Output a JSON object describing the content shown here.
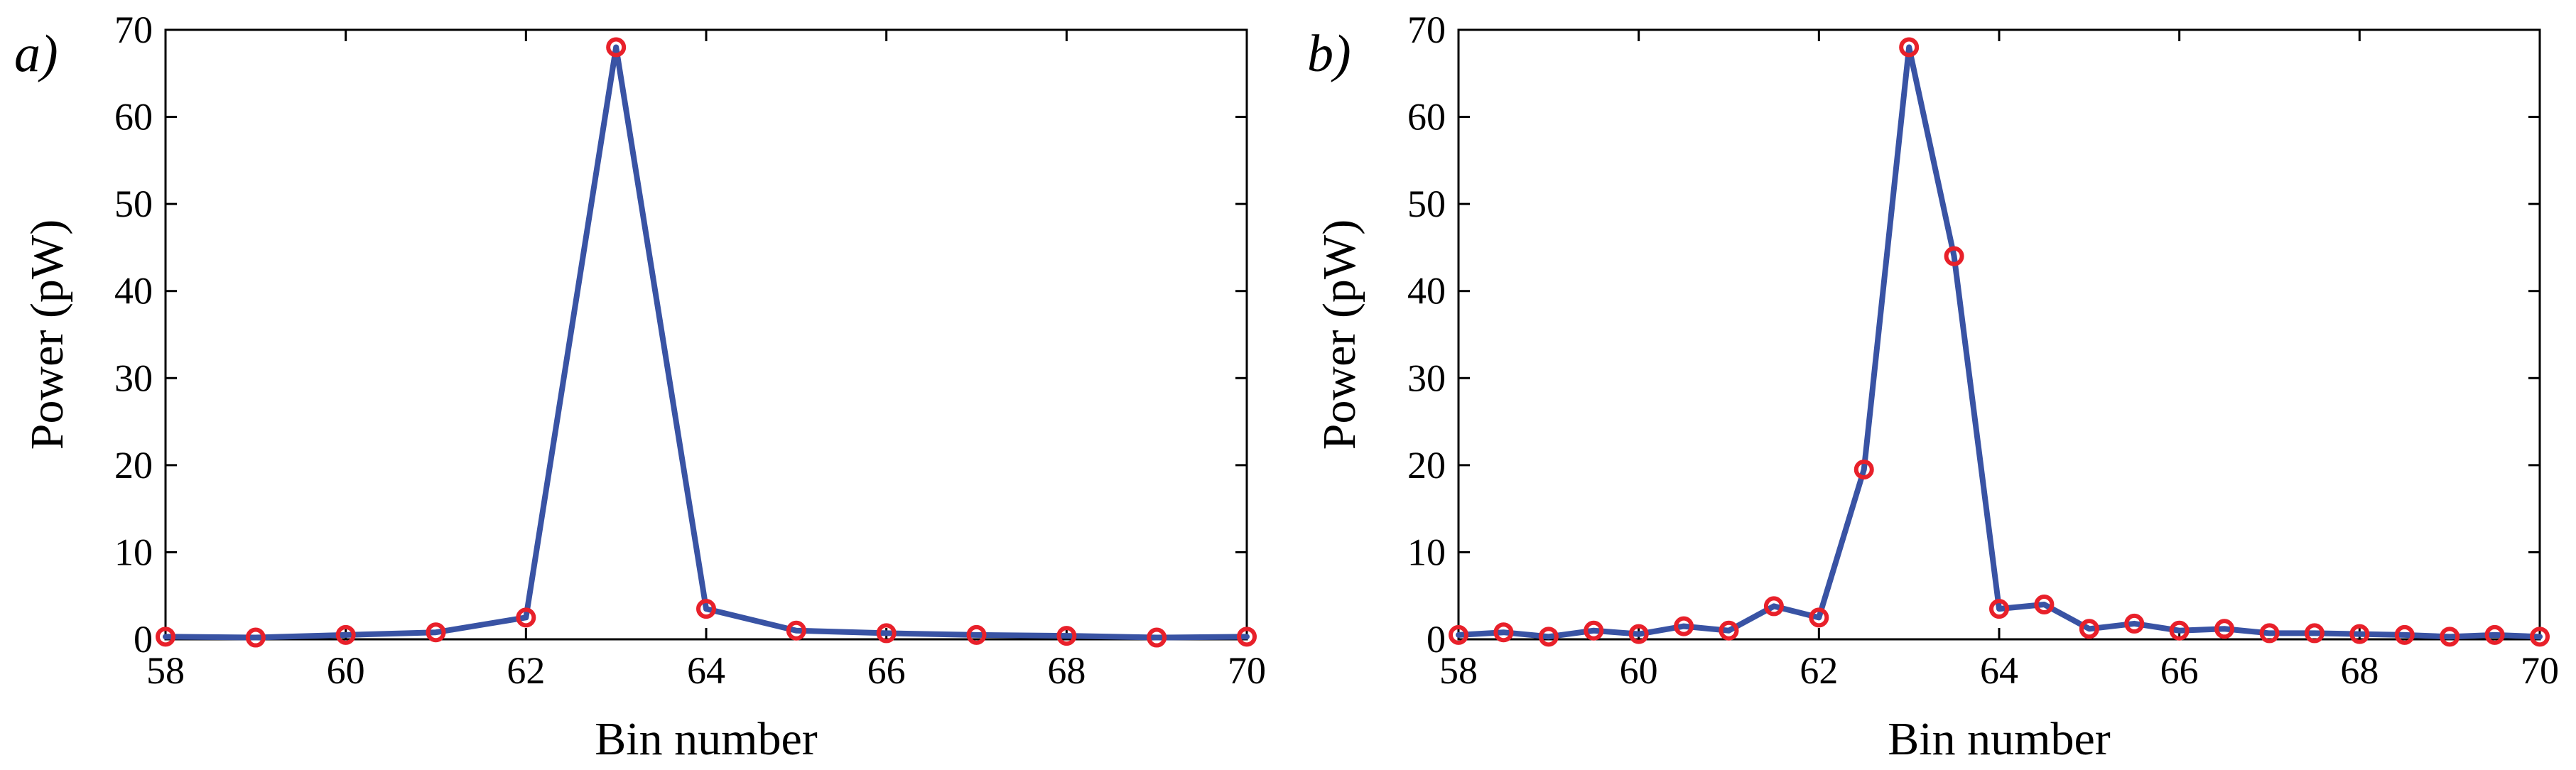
{
  "chart_data": [
    {
      "type": "line",
      "panel_label": "a)",
      "xlabel": "Bin number",
      "ylabel": "Power (pW)",
      "xlim": [
        58,
        70
      ],
      "ylim": [
        0,
        70
      ],
      "xticks": [
        58,
        60,
        62,
        64,
        66,
        68,
        70
      ],
      "yticks": [
        0,
        10,
        20,
        30,
        40,
        50,
        60,
        70
      ],
      "grid": false,
      "line_color": "#3953a4",
      "marker_color": "#e8202a",
      "marker": "circle",
      "series": [
        {
          "x": [
            58,
            59,
            60,
            61,
            62,
            63,
            64,
            65,
            66,
            67,
            68,
            69,
            70
          ],
          "y": [
            0.3,
            0.2,
            0.5,
            0.8,
            2.5,
            68,
            3.5,
            1.0,
            0.7,
            0.5,
            0.4,
            0.2,
            0.3
          ]
        }
      ]
    },
    {
      "type": "line",
      "panel_label": "b)",
      "xlabel": "Bin number",
      "ylabel": "Power (pW)",
      "xlim": [
        58,
        70
      ],
      "ylim": [
        0,
        70
      ],
      "xticks": [
        58,
        60,
        62,
        64,
        66,
        68,
        70
      ],
      "yticks": [
        0,
        10,
        20,
        30,
        40,
        50,
        60,
        70
      ],
      "grid": false,
      "line_color": "#3953a4",
      "marker_color": "#e8202a",
      "marker": "circle",
      "series": [
        {
          "x": [
            58,
            58.5,
            59,
            59.5,
            60,
            60.5,
            61,
            61.5,
            62,
            62.5,
            63,
            63.5,
            64,
            64.5,
            65,
            65.5,
            66,
            66.5,
            67,
            67.5,
            68,
            68.5,
            69,
            69.5,
            70
          ],
          "y": [
            0.5,
            0.8,
            0.3,
            1.0,
            0.6,
            1.5,
            1.0,
            3.8,
            2.5,
            19.5,
            68,
            44,
            3.5,
            4.0,
            1.2,
            1.8,
            1.0,
            1.2,
            0.7,
            0.7,
            0.6,
            0.5,
            0.3,
            0.5,
            0.3
          ]
        }
      ]
    }
  ]
}
